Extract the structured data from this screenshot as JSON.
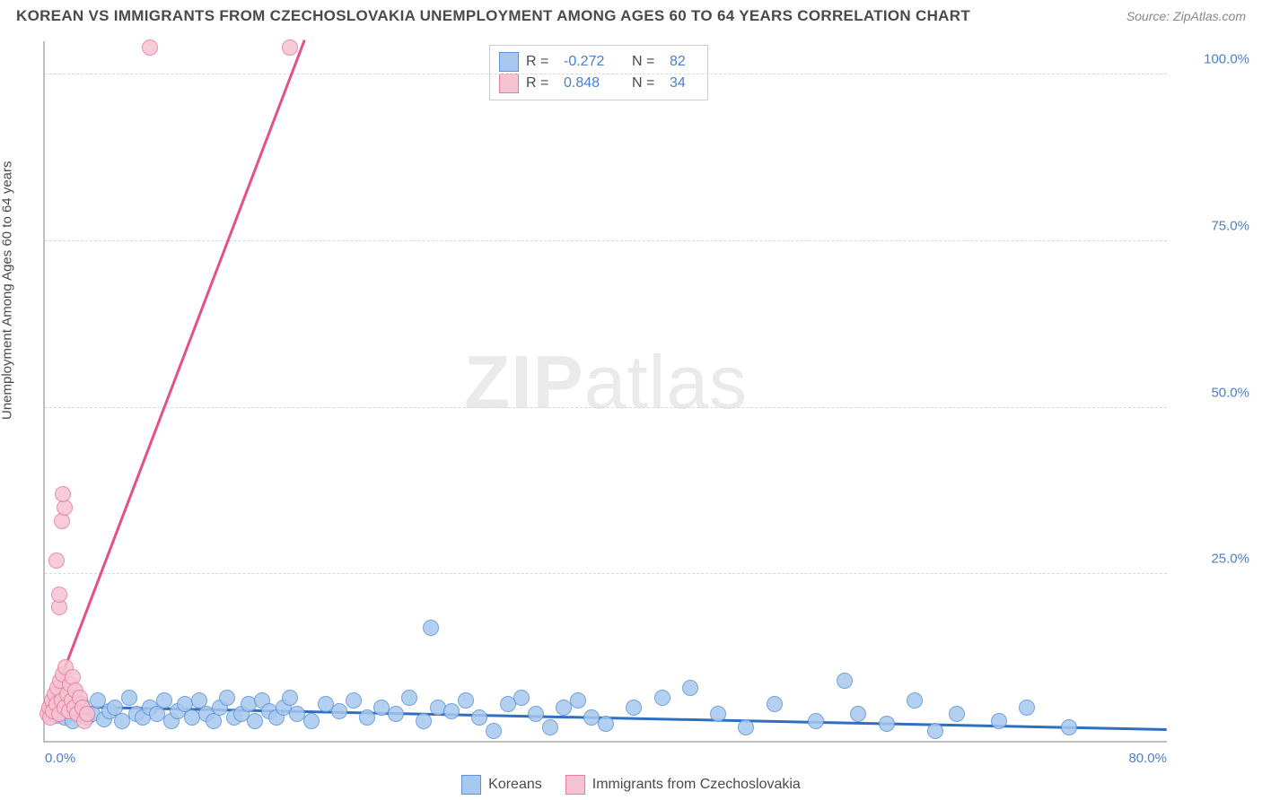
{
  "title": "KOREAN VS IMMIGRANTS FROM CZECHOSLOVAKIA UNEMPLOYMENT AMONG AGES 60 TO 64 YEARS CORRELATION CHART",
  "source": "Source: ZipAtlas.com",
  "y_axis_label": "Unemployment Among Ages 60 to 64 years",
  "watermark_bold": "ZIP",
  "watermark_light": "atlas",
  "chart": {
    "type": "scatter",
    "xlim": [
      0,
      80
    ],
    "ylim": [
      0,
      105
    ],
    "x_ticks": [
      {
        "v": 0,
        "label": "0.0%",
        "align": "left"
      },
      {
        "v": 80,
        "label": "80.0%",
        "align": "right"
      }
    ],
    "y_ticks": [
      {
        "v": 25,
        "label": "25.0%"
      },
      {
        "v": 50,
        "label": "50.0%"
      },
      {
        "v": 75,
        "label": "75.0%"
      },
      {
        "v": 100,
        "label": "100.0%"
      }
    ],
    "grid_color": "#d9d9d9",
    "axis_color": "#bfbfbf",
    "background_color": "#ffffff",
    "marker_radius": 8,
    "marker_stroke": 1.5,
    "marker_fill_opacity": 0.35,
    "series": [
      {
        "name": "Koreans",
        "color_fill": "#a8c8ef",
        "color_stroke": "#5b93d6",
        "trend_color": "#2f6fc0",
        "trend": {
          "x1": 0,
          "y1": 5.0,
          "x2": 80,
          "y2": 1.5
        },
        "R": "-0.272",
        "N": "82",
        "points": [
          [
            0.4,
            4.0
          ],
          [
            0.6,
            4.2
          ],
          [
            0.8,
            3.8
          ],
          [
            1.0,
            5.0
          ],
          [
            1.2,
            4.5
          ],
          [
            1.4,
            3.5
          ],
          [
            1.6,
            4.8
          ],
          [
            1.8,
            6.0
          ],
          [
            2.0,
            3.0
          ],
          [
            2.3,
            4.2
          ],
          [
            2.6,
            5.5
          ],
          [
            3.0,
            3.5
          ],
          [
            3.4,
            4.0
          ],
          [
            3.8,
            6.0
          ],
          [
            4.2,
            3.2
          ],
          [
            4.6,
            4.5
          ],
          [
            5.0,
            5.0
          ],
          [
            5.5,
            3.0
          ],
          [
            6.0,
            6.5
          ],
          [
            6.5,
            4.0
          ],
          [
            7.0,
            3.5
          ],
          [
            7.5,
            5.0
          ],
          [
            8.0,
            4.0
          ],
          [
            8.5,
            6.0
          ],
          [
            9.0,
            3.0
          ],
          [
            9.5,
            4.5
          ],
          [
            10.0,
            5.5
          ],
          [
            10.5,
            3.5
          ],
          [
            11.0,
            6.0
          ],
          [
            11.5,
            4.0
          ],
          [
            12.0,
            3.0
          ],
          [
            12.5,
            5.0
          ],
          [
            13.0,
            6.5
          ],
          [
            13.5,
            3.5
          ],
          [
            14.0,
            4.0
          ],
          [
            14.5,
            5.5
          ],
          [
            15.0,
            3.0
          ],
          [
            15.5,
            6.0
          ],
          [
            16.0,
            4.5
          ],
          [
            16.5,
            3.5
          ],
          [
            17.0,
            5.0
          ],
          [
            17.5,
            6.5
          ],
          [
            18.0,
            4.0
          ],
          [
            19.0,
            3.0
          ],
          [
            20.0,
            5.5
          ],
          [
            21.0,
            4.5
          ],
          [
            22.0,
            6.0
          ],
          [
            23.0,
            3.5
          ],
          [
            24.0,
            5.0
          ],
          [
            25.0,
            4.0
          ],
          [
            26.0,
            6.5
          ],
          [
            27.0,
            3.0
          ],
          [
            27.5,
            17.0
          ],
          [
            28.0,
            5.0
          ],
          [
            29.0,
            4.5
          ],
          [
            30.0,
            6.0
          ],
          [
            31.0,
            3.5
          ],
          [
            32.0,
            1.5
          ],
          [
            33.0,
            5.5
          ],
          [
            34.0,
            6.5
          ],
          [
            35.0,
            4.0
          ],
          [
            36.0,
            2.0
          ],
          [
            37.0,
            5.0
          ],
          [
            38.0,
            6.0
          ],
          [
            39.0,
            3.5
          ],
          [
            40.0,
            2.5
          ],
          [
            42.0,
            5.0
          ],
          [
            44.0,
            6.5
          ],
          [
            46.0,
            8.0
          ],
          [
            48.0,
            4.0
          ],
          [
            50.0,
            2.0
          ],
          [
            52.0,
            5.5
          ],
          [
            55.0,
            3.0
          ],
          [
            57.0,
            9.0
          ],
          [
            58.0,
            4.0
          ],
          [
            60.0,
            2.5
          ],
          [
            62.0,
            6.0
          ],
          [
            63.5,
            1.5
          ],
          [
            65.0,
            4.0
          ],
          [
            68.0,
            3.0
          ],
          [
            70.0,
            5.0
          ],
          [
            73.0,
            2.0
          ]
        ]
      },
      {
        "name": "Immigrants from Czechoslovakia",
        "color_fill": "#f6c3d2",
        "color_stroke": "#e87ba0",
        "trend_color": "#e64f88",
        "trend": {
          "x1": 0,
          "y1": 3.0,
          "x2": 18.5,
          "y2": 105
        },
        "R": "0.848",
        "N": "34",
        "points": [
          [
            0.2,
            4.0
          ],
          [
            0.3,
            5.0
          ],
          [
            0.4,
            3.5
          ],
          [
            0.5,
            6.0
          ],
          [
            0.6,
            4.5
          ],
          [
            0.7,
            7.0
          ],
          [
            0.8,
            5.5
          ],
          [
            0.9,
            8.0
          ],
          [
            1.0,
            4.0
          ],
          [
            1.1,
            9.0
          ],
          [
            1.2,
            6.0
          ],
          [
            1.3,
            10.0
          ],
          [
            1.4,
            5.0
          ],
          [
            1.5,
            11.0
          ],
          [
            1.6,
            7.0
          ],
          [
            1.7,
            4.5
          ],
          [
            1.8,
            8.5
          ],
          [
            1.9,
            6.0
          ],
          [
            2.0,
            9.5
          ],
          [
            2.1,
            5.0
          ],
          [
            2.2,
            7.5
          ],
          [
            2.3,
            4.0
          ],
          [
            2.5,
            6.5
          ],
          [
            2.7,
            5.0
          ],
          [
            1.0,
            20.0
          ],
          [
            1.0,
            22.0
          ],
          [
            0.8,
            27.0
          ],
          [
            1.2,
            33.0
          ],
          [
            1.4,
            35.0
          ],
          [
            1.3,
            37.0
          ],
          [
            7.5,
            104.0
          ],
          [
            17.5,
            104.0
          ],
          [
            2.8,
            3.0
          ],
          [
            3.0,
            4.0
          ]
        ]
      }
    ]
  },
  "top_legend": {
    "label_r": "R =",
    "label_n": "N ="
  },
  "bottom_legend_items": [
    {
      "series_index": 0
    },
    {
      "series_index": 1
    }
  ]
}
